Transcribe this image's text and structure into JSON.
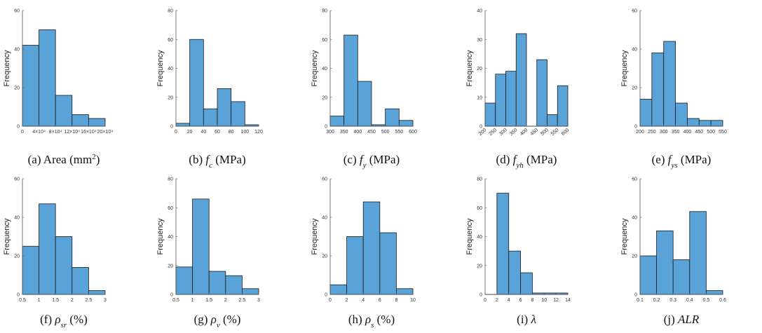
{
  "figure_title": "Histograms of database parameters",
  "chart_data": [
    {
      "type": "bar",
      "caption_prefix": "(a) Area (mm",
      "caption_sup": "2",
      "caption_suffix": ")",
      "ylabel": "Frequency",
      "bin_edges": [
        0,
        40000,
        80000,
        120000,
        160000,
        200000
      ],
      "values": [
        42,
        50,
        16,
        6,
        4
      ],
      "xlim": [
        0,
        200000
      ],
      "ylim": [
        0,
        60
      ],
      "xticks": [
        0,
        40000,
        80000,
        120000,
        160000,
        200000
      ],
      "xtick_labels": [
        "0",
        "4×10⁴",
        "8×10⁴",
        "12×10⁴",
        "16×10⁴",
        "20×10⁴"
      ],
      "yticks": [
        0,
        20,
        40,
        60
      ],
      "ytick_labels": [
        "0",
        "20",
        "40",
        "60"
      ],
      "xtick_rotate": false
    },
    {
      "type": "bar",
      "caption_prefix": "(b) ",
      "caption_var": "f",
      "caption_sub": "c",
      "caption_suffix": " (MPa)",
      "ylabel": "Frequency",
      "bin_edges": [
        0,
        20,
        40,
        60,
        80,
        100,
        120
      ],
      "values": [
        2,
        60,
        12,
        26,
        17,
        1
      ],
      "xlim": [
        0,
        120
      ],
      "ylim": [
        0,
        80
      ],
      "xticks": [
        0,
        20,
        40,
        60,
        80,
        100,
        120
      ],
      "xtick_labels": [
        "0",
        "20",
        "40",
        "60",
        "80",
        "100",
        "120"
      ],
      "yticks": [
        0,
        20,
        40,
        60,
        80
      ],
      "ytick_labels": [
        "0",
        "20",
        "40",
        "60",
        "80"
      ],
      "xtick_rotate": false
    },
    {
      "type": "bar",
      "caption_prefix": "(c) ",
      "caption_var": "f",
      "caption_sub": "y",
      "caption_suffix": " (MPa)",
      "ylabel": "Frequency",
      "bin_edges": [
        300,
        350,
        400,
        450,
        500,
        550,
        600
      ],
      "values": [
        7,
        63,
        31,
        1,
        12,
        4
      ],
      "xlim": [
        300,
        600
      ],
      "ylim": [
        0,
        80
      ],
      "xticks": [
        300,
        350,
        400,
        450,
        500,
        550,
        600
      ],
      "xtick_labels": [
        "300",
        "350",
        "400",
        "450",
        "500",
        "550",
        "600"
      ],
      "yticks": [
        0,
        20,
        40,
        60,
        80
      ],
      "ytick_labels": [
        "0",
        "20",
        "40",
        "60",
        "80"
      ],
      "xtick_rotate": false
    },
    {
      "type": "bar",
      "caption_prefix": "(d) ",
      "caption_var": "f",
      "caption_sub": "yh",
      "caption_suffix": " (MPa)",
      "ylabel": "Frequency",
      "bin_edges": [
        200,
        250,
        300,
        350,
        400,
        450,
        500,
        550,
        600
      ],
      "values": [
        8,
        18,
        19,
        32,
        0,
        23,
        4,
        14
      ],
      "xlim": [
        200,
        600
      ],
      "ylim": [
        0,
        40
      ],
      "xticks": [
        200,
        250,
        300,
        350,
        400,
        450,
        500,
        550,
        600
      ],
      "xtick_labels": [
        "200",
        "250",
        "300",
        "350",
        "400",
        "450",
        "500",
        "550",
        "600"
      ],
      "yticks": [
        0,
        10,
        20,
        30,
        40
      ],
      "ytick_labels": [
        "0",
        "10",
        "20",
        "30",
        "40"
      ],
      "xtick_rotate": true
    },
    {
      "type": "bar",
      "caption_prefix": "(e) ",
      "caption_var": "f",
      "caption_sub": "ys",
      "caption_suffix": " (MPa)",
      "ylabel": "Frequency",
      "bin_edges": [
        200,
        250,
        300,
        350,
        400,
        450,
        500,
        550
      ],
      "values": [
        14,
        38,
        44,
        12,
        4,
        3,
        3
      ],
      "xlim": [
        200,
        550
      ],
      "ylim": [
        0,
        60
      ],
      "xticks": [
        200,
        250,
        300,
        350,
        400,
        450,
        500,
        550
      ],
      "xtick_labels": [
        "200",
        "250",
        "300",
        "350",
        "400",
        "450",
        "500",
        "550"
      ],
      "yticks": [
        0,
        20,
        40,
        60
      ],
      "ytick_labels": [
        "0",
        "20",
        "40",
        "60"
      ],
      "xtick_rotate": false
    },
    {
      "type": "bar",
      "caption_prefix": "(f) ",
      "caption_var": "ρ",
      "caption_sub": "sr",
      "caption_suffix": " (%)",
      "ylabel": "Frequency",
      "bin_edges": [
        0.5,
        1,
        1.5,
        2,
        2.5,
        3
      ],
      "values": [
        25,
        47,
        30,
        14,
        2
      ],
      "xlim": [
        0.5,
        3
      ],
      "ylim": [
        0,
        60
      ],
      "xticks": [
        0.5,
        1,
        1.5,
        2,
        2.5,
        3
      ],
      "xtick_labels": [
        "0.5",
        "1",
        "1.5",
        "2",
        "2.5",
        "3"
      ],
      "yticks": [
        0,
        20,
        40,
        60
      ],
      "ytick_labels": [
        "0",
        "20",
        "40",
        "60"
      ],
      "xtick_rotate": false
    },
    {
      "type": "bar",
      "caption_prefix": "(g) ",
      "caption_var": "ρ",
      "caption_sub": "v",
      "caption_suffix": " (%)",
      "ylabel": "Frequency",
      "bin_edges": [
        0.5,
        1,
        1.5,
        2,
        2.5,
        3
      ],
      "values": [
        19,
        66,
        16,
        13,
        4
      ],
      "xlim": [
        0.5,
        3
      ],
      "ylim": [
        0,
        80
      ],
      "xticks": [
        0.5,
        1,
        1.5,
        2,
        2.5,
        3
      ],
      "xtick_labels": [
        "0.5",
        "1",
        "1.5",
        "2",
        "2.5",
        "3"
      ],
      "yticks": [
        0,
        20,
        40,
        60,
        80
      ],
      "ytick_labels": [
        "0",
        "20",
        "40",
        "60",
        "80"
      ],
      "xtick_rotate": false
    },
    {
      "type": "bar",
      "caption_prefix": "(h) ",
      "caption_var": "ρ",
      "caption_sub": "s",
      "caption_suffix": " (%)",
      "ylabel": "Frequency",
      "bin_edges": [
        0,
        2,
        4,
        6,
        8,
        10
      ],
      "values": [
        5,
        30,
        48,
        32,
        3
      ],
      "xlim": [
        0,
        10
      ],
      "ylim": [
        0,
        60
      ],
      "xticks": [
        0,
        2,
        4,
        6,
        8,
        10
      ],
      "xtick_labels": [
        "0",
        "2",
        "4",
        "6",
        "8",
        "10"
      ],
      "yticks": [
        0,
        20,
        40,
        60
      ],
      "ytick_labels": [
        "0",
        "20",
        "40",
        "60"
      ],
      "xtick_rotate": false
    },
    {
      "type": "bar",
      "caption_prefix": "(i) ",
      "caption_var": "λ",
      "caption_sub": "",
      "caption_suffix": "",
      "ylabel": "Frequency",
      "bin_edges": [
        0,
        2,
        4,
        6,
        8,
        10,
        12,
        14
      ],
      "values": [
        0,
        70,
        30,
        15,
        1,
        1,
        1
      ],
      "xlim": [
        0,
        14
      ],
      "ylim": [
        0,
        80
      ],
      "xticks": [
        0,
        2,
        4,
        6,
        8,
        10,
        12,
        14
      ],
      "xtick_labels": [
        "0",
        "2",
        "4",
        "6",
        "8",
        "10",
        "12",
        "14"
      ],
      "yticks": [
        0,
        20,
        40,
        60,
        80
      ],
      "ytick_labels": [
        "0",
        "20",
        "40",
        "60",
        "80"
      ],
      "xtick_rotate": false
    },
    {
      "type": "bar",
      "caption_prefix": "(j) ",
      "caption_var": "ALR",
      "caption_sub": "",
      "caption_suffix": "",
      "ylabel": "Frequency",
      "bin_edges": [
        0.1,
        0.2,
        0.3,
        0.4,
        0.5,
        0.6
      ],
      "values": [
        20,
        33,
        18,
        43,
        2
      ],
      "xlim": [
        0.1,
        0.6
      ],
      "ylim": [
        0,
        60
      ],
      "xticks": [
        0.1,
        0.2,
        0.3,
        0.4,
        0.5,
        0.6
      ],
      "xtick_labels": [
        "0.1",
        "0.2",
        "0.3",
        "0.4",
        "0.5",
        "0.6"
      ],
      "yticks": [
        0,
        20,
        40,
        60
      ],
      "ytick_labels": [
        "0",
        "20",
        "40",
        "60"
      ],
      "xtick_rotate": false
    }
  ],
  "colors": {
    "bar_fill": "#5aa3d8",
    "bar_edge": "#1a1a1a",
    "axis": "#555555",
    "tick_text": "#333333"
  }
}
